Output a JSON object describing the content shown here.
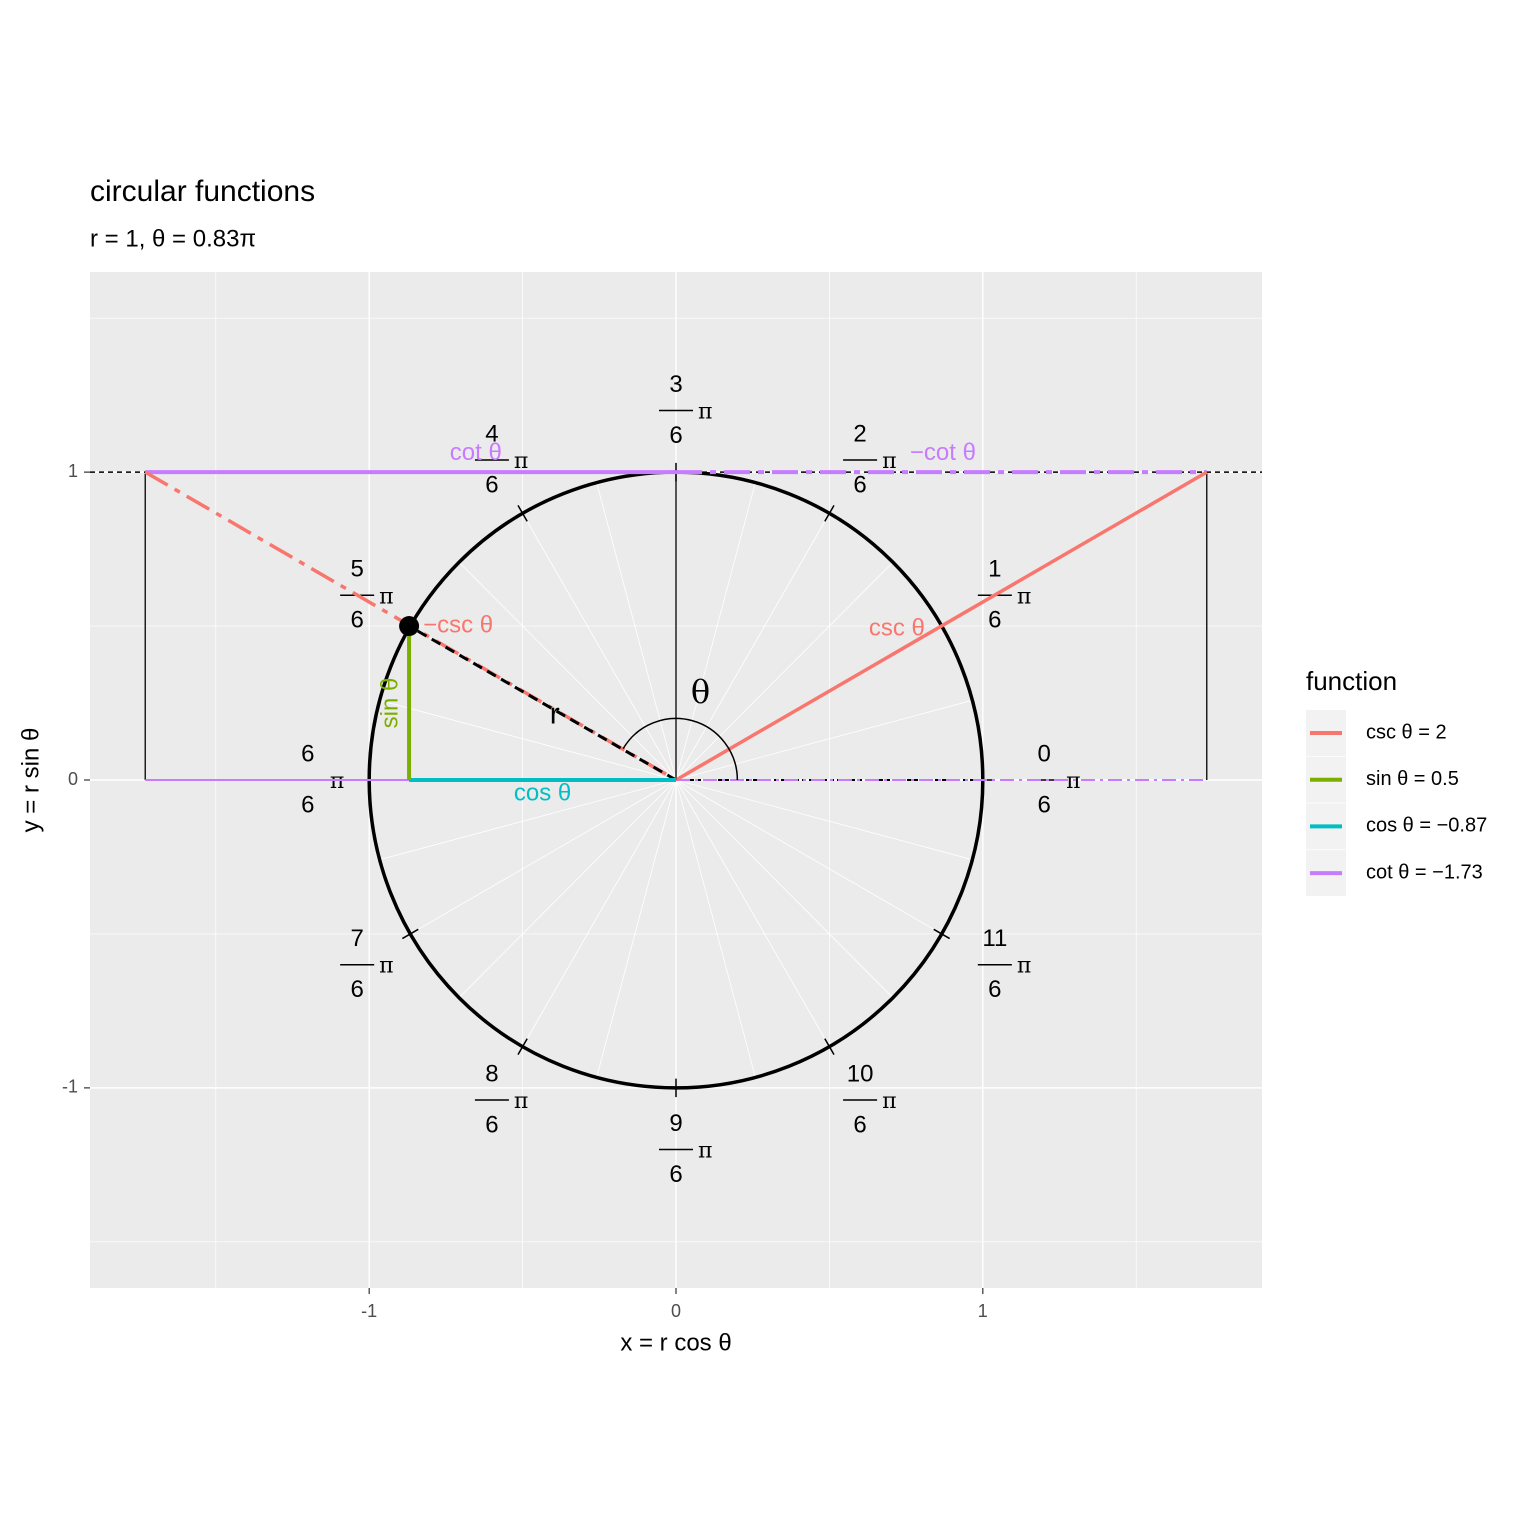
{
  "chart_data": {
    "type": "unitcircle",
    "title": "circular functions",
    "subtitle": "r = 1, θ = 0.83π",
    "x_label": "x = r cos θ",
    "y_label": "y = r sin θ",
    "r": 1,
    "theta": 0.83,
    "xlim": [
      -1.91,
      1.91
    ],
    "ylim": [
      -1.65,
      1.65
    ],
    "xticks": [
      -1,
      0,
      1
    ],
    "yticks": [
      -1,
      0,
      1
    ],
    "xminor": [
      -1.5,
      -0.5,
      0.5,
      1.5
    ],
    "yminor": [
      -1.5,
      -0.5,
      0.5,
      1.5
    ],
    "grid": true,
    "angle_ticks": [
      0,
      1,
      2,
      3,
      4,
      5,
      6,
      7,
      8,
      9,
      10,
      11
    ],
    "angle_denominator": 6,
    "pi": "π",
    "legend_title": "function",
    "legend_position": "right",
    "series": [
      {
        "name": "csc θ = 2",
        "color": "#F8766D",
        "values": [
          2
        ]
      },
      {
        "name": "sin θ = 0.5",
        "color": "#7CAE00",
        "values": [
          0.5
        ]
      },
      {
        "name": "cos θ = −0.87",
        "color": "#00BFC4",
        "values": [
          -0.87
        ]
      },
      {
        "name": "cot θ = −1.73",
        "color": "#C77CFF",
        "values": [
          -1.73
        ]
      }
    ],
    "annotations": {
      "csc": "csc θ",
      "neg_csc": "−csc θ",
      "cot": "cot θ",
      "neg_cot": "−cot θ",
      "sin": "sin θ",
      "cos": "cos θ",
      "r": "r",
      "theta": "θ"
    }
  }
}
